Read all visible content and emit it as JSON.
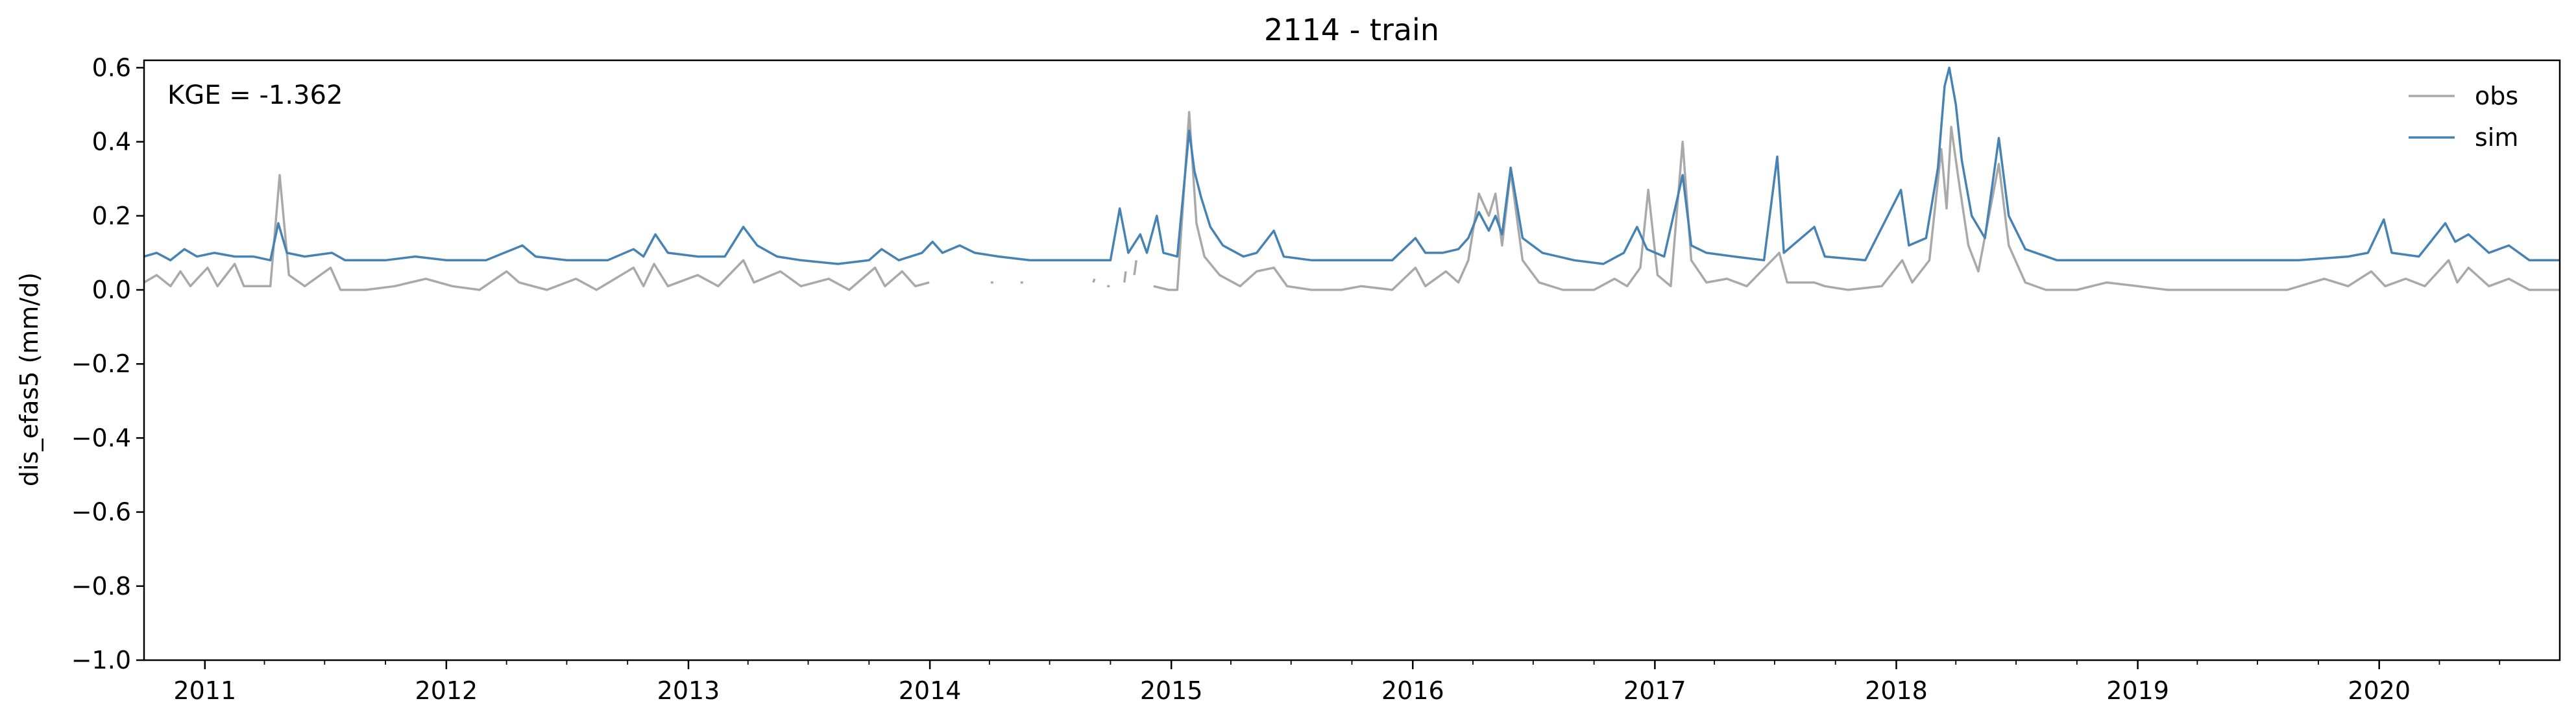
{
  "chart_data": {
    "type": "line",
    "title": "2114 - train",
    "xlabel": "",
    "ylabel": "dis_efas5 (mm/d)",
    "annotation": "KGE = -1.362",
    "xlim": [
      "2010-10-01",
      "2020-09-30"
    ],
    "ylim": [
      -1.0,
      0.62
    ],
    "yticks": [
      {
        "value": 0.6,
        "label": "0.6"
      },
      {
        "value": 0.4,
        "label": "0.4"
      },
      {
        "value": 0.2,
        "label": "0.2"
      },
      {
        "value": 0.0,
        "label": "0.0"
      },
      {
        "value": -0.2,
        "label": "−0.2"
      },
      {
        "value": -0.4,
        "label": "−0.4"
      },
      {
        "value": -0.6,
        "label": "−0.6"
      },
      {
        "value": -0.8,
        "label": "−0.8"
      },
      {
        "value": -1.0,
        "label": "−1.0"
      }
    ],
    "xticks": [
      {
        "value": "2011-01-01",
        "label": "2011"
      },
      {
        "value": "2012-01-01",
        "label": "2012"
      },
      {
        "value": "2013-01-01",
        "label": "2013"
      },
      {
        "value": "2014-01-01",
        "label": "2014"
      },
      {
        "value": "2015-01-01",
        "label": "2015"
      },
      {
        "value": "2016-01-01",
        "label": "2016"
      },
      {
        "value": "2017-01-01",
        "label": "2017"
      },
      {
        "value": "2018-01-01",
        "label": "2018"
      },
      {
        "value": "2019-01-01",
        "label": "2019"
      },
      {
        "value": "2020-01-01",
        "label": "2020"
      }
    ],
    "grid": false,
    "legend": {
      "position": "top-right",
      "frame": false
    },
    "series": [
      {
        "name": "obs",
        "color": "#a9a9a9",
        "points": [
          [
            "2010-10-01",
            0.02
          ],
          [
            "2010-10-20",
            0.04
          ],
          [
            "2010-11-10",
            0.01
          ],
          [
            "2010-11-25",
            0.05
          ],
          [
            "2010-12-10",
            0.01
          ],
          [
            "2011-01-05",
            0.06
          ],
          [
            "2011-01-20",
            0.01
          ],
          [
            "2011-02-15",
            0.07
          ],
          [
            "2011-03-01",
            0.01
          ],
          [
            "2011-04-10",
            0.01
          ],
          [
            "2011-04-24",
            0.31
          ],
          [
            "2011-05-08",
            0.04
          ],
          [
            "2011-06-01",
            0.01
          ],
          [
            "2011-07-10",
            0.06
          ],
          [
            "2011-07-25",
            0.0
          ],
          [
            "2011-09-01",
            0.0
          ],
          [
            "2011-10-15",
            0.01
          ],
          [
            "2011-12-01",
            0.03
          ],
          [
            "2012-01-10",
            0.01
          ],
          [
            "2012-02-20",
            0.0
          ],
          [
            "2012-04-01",
            0.05
          ],
          [
            "2012-04-20",
            0.02
          ],
          [
            "2012-06-01",
            0.0
          ],
          [
            "2012-07-15",
            0.03
          ],
          [
            "2012-08-15",
            0.0
          ],
          [
            "2012-10-10",
            0.06
          ],
          [
            "2012-10-25",
            0.01
          ],
          [
            "2012-11-10",
            0.07
          ],
          [
            "2012-12-01",
            0.01
          ],
          [
            "2013-01-15",
            0.04
          ],
          [
            "2013-02-15",
            0.01
          ],
          [
            "2013-03-25",
            0.08
          ],
          [
            "2013-04-10",
            0.02
          ],
          [
            "2013-05-20",
            0.05
          ],
          [
            "2013-06-20",
            0.01
          ],
          [
            "2013-08-01",
            0.03
          ],
          [
            "2013-09-01",
            0.0
          ],
          [
            "2013-10-10",
            0.06
          ],
          [
            "2013-10-25",
            0.01
          ],
          [
            "2013-11-20",
            0.05
          ],
          [
            "2013-12-10",
            0.01
          ],
          [
            "2013-12-31",
            0.02
          ],
          [
            "2014-01-01",
            null
          ],
          [
            "2014-04-05",
            0.02
          ],
          [
            "2014-04-06",
            null
          ],
          [
            "2014-05-20",
            0.02
          ],
          [
            "2014-05-21",
            null
          ],
          [
            "2014-09-05",
            0.02
          ],
          [
            "2014-09-07",
            0.03
          ],
          [
            "2014-09-08",
            null
          ],
          [
            "2014-09-28",
            0.01
          ],
          [
            "2014-09-29",
            null
          ],
          [
            "2014-10-22",
            0.02
          ],
          [
            "2014-10-24",
            0.05
          ],
          [
            "2014-10-25",
            null
          ],
          [
            "2014-11-06",
            0.04
          ],
          [
            "2014-11-09",
            0.08
          ],
          [
            "2014-11-10",
            null
          ],
          [
            "2014-12-05",
            0.01
          ],
          [
            "2014-12-28",
            0.0
          ],
          [
            "2015-01-10",
            0.0
          ],
          [
            "2015-01-28",
            0.48
          ],
          [
            "2015-02-08",
            0.18
          ],
          [
            "2015-02-20",
            0.09
          ],
          [
            "2015-03-15",
            0.04
          ],
          [
            "2015-04-15",
            0.01
          ],
          [
            "2015-05-10",
            0.05
          ],
          [
            "2015-06-05",
            0.06
          ],
          [
            "2015-06-25",
            0.01
          ],
          [
            "2015-08-01",
            0.0
          ],
          [
            "2015-09-15",
            0.0
          ],
          [
            "2015-10-15",
            0.01
          ],
          [
            "2015-12-01",
            0.0
          ],
          [
            "2016-01-05",
            0.06
          ],
          [
            "2016-01-20",
            0.01
          ],
          [
            "2016-02-20",
            0.05
          ],
          [
            "2016-03-10",
            0.02
          ],
          [
            "2016-03-25",
            0.08
          ],
          [
            "2016-04-10",
            0.26
          ],
          [
            "2016-04-25",
            0.2
          ],
          [
            "2016-05-05",
            0.26
          ],
          [
            "2016-05-15",
            0.12
          ],
          [
            "2016-05-28",
            0.32
          ],
          [
            "2016-06-15",
            0.08
          ],
          [
            "2016-07-10",
            0.02
          ],
          [
            "2016-08-15",
            0.0
          ],
          [
            "2016-10-01",
            0.0
          ],
          [
            "2016-11-01",
            0.03
          ],
          [
            "2016-11-20",
            0.01
          ],
          [
            "2016-12-10",
            0.06
          ],
          [
            "2016-12-22",
            0.27
          ],
          [
            "2017-01-05",
            0.04
          ],
          [
            "2017-01-25",
            0.01
          ],
          [
            "2017-02-12",
            0.4
          ],
          [
            "2017-02-25",
            0.08
          ],
          [
            "2017-03-20",
            0.02
          ],
          [
            "2017-04-20",
            0.03
          ],
          [
            "2017-05-20",
            0.01
          ],
          [
            "2017-07-08",
            0.1
          ],
          [
            "2017-07-20",
            0.02
          ],
          [
            "2017-08-30",
            0.02
          ],
          [
            "2017-09-15",
            0.01
          ],
          [
            "2017-10-20",
            0.0
          ],
          [
            "2017-12-10",
            0.01
          ],
          [
            "2018-01-10",
            0.08
          ],
          [
            "2018-01-25",
            0.02
          ],
          [
            "2018-02-20",
            0.08
          ],
          [
            "2018-03-10",
            0.38
          ],
          [
            "2018-03-18",
            0.22
          ],
          [
            "2018-03-25",
            0.44
          ],
          [
            "2018-04-05",
            0.3
          ],
          [
            "2018-04-20",
            0.12
          ],
          [
            "2018-05-05",
            0.05
          ],
          [
            "2018-06-05",
            0.34
          ],
          [
            "2018-06-20",
            0.12
          ],
          [
            "2018-07-15",
            0.02
          ],
          [
            "2018-08-15",
            0.0
          ],
          [
            "2018-10-01",
            0.0
          ],
          [
            "2018-11-15",
            0.02
          ],
          [
            "2019-01-01",
            0.01
          ],
          [
            "2019-02-15",
            0.0
          ],
          [
            "2019-04-15",
            0.0
          ],
          [
            "2019-06-15",
            0.0
          ],
          [
            "2019-08-15",
            0.0
          ],
          [
            "2019-10-10",
            0.03
          ],
          [
            "2019-11-15",
            0.01
          ],
          [
            "2019-12-20",
            0.05
          ],
          [
            "2020-01-10",
            0.01
          ],
          [
            "2020-02-10",
            0.03
          ],
          [
            "2020-03-10",
            0.01
          ],
          [
            "2020-04-15",
            0.08
          ],
          [
            "2020-04-28",
            0.02
          ],
          [
            "2020-05-15",
            0.06
          ],
          [
            "2020-06-15",
            0.01
          ],
          [
            "2020-07-15",
            0.03
          ],
          [
            "2020-08-15",
            0.0
          ],
          [
            "2020-09-30",
            0.0
          ]
        ]
      },
      {
        "name": "sim",
        "color": "#4682b4",
        "points": [
          [
            "2010-10-01",
            0.09
          ],
          [
            "2010-10-20",
            0.1
          ],
          [
            "2010-11-10",
            0.08
          ],
          [
            "2010-12-01",
            0.11
          ],
          [
            "2010-12-20",
            0.09
          ],
          [
            "2011-01-15",
            0.1
          ],
          [
            "2011-02-15",
            0.09
          ],
          [
            "2011-03-15",
            0.09
          ],
          [
            "2011-04-10",
            0.08
          ],
          [
            "2011-04-22",
            0.18
          ],
          [
            "2011-05-05",
            0.1
          ],
          [
            "2011-06-01",
            0.09
          ],
          [
            "2011-07-12",
            0.1
          ],
          [
            "2011-08-01",
            0.08
          ],
          [
            "2011-10-01",
            0.08
          ],
          [
            "2011-11-15",
            0.09
          ],
          [
            "2012-01-01",
            0.08
          ],
          [
            "2012-03-01",
            0.08
          ],
          [
            "2012-04-25",
            0.12
          ],
          [
            "2012-05-15",
            0.09
          ],
          [
            "2012-07-01",
            0.08
          ],
          [
            "2012-09-01",
            0.08
          ],
          [
            "2012-10-10",
            0.11
          ],
          [
            "2012-10-25",
            0.09
          ],
          [
            "2012-11-12",
            0.15
          ],
          [
            "2012-12-01",
            0.1
          ],
          [
            "2013-01-15",
            0.09
          ],
          [
            "2013-02-25",
            0.09
          ],
          [
            "2013-03-25",
            0.17
          ],
          [
            "2013-04-15",
            0.12
          ],
          [
            "2013-05-15",
            0.09
          ],
          [
            "2013-06-20",
            0.08
          ],
          [
            "2013-08-15",
            0.07
          ],
          [
            "2013-10-01",
            0.08
          ],
          [
            "2013-10-20",
            0.11
          ],
          [
            "2013-11-15",
            0.08
          ],
          [
            "2013-12-20",
            0.1
          ],
          [
            "2014-01-05",
            0.13
          ],
          [
            "2014-01-20",
            0.1
          ],
          [
            "2014-02-15",
            0.12
          ],
          [
            "2014-03-10",
            0.1
          ],
          [
            "2014-04-15",
            0.09
          ],
          [
            "2014-06-01",
            0.08
          ],
          [
            "2014-07-15",
            0.08
          ],
          [
            "2014-09-01",
            0.08
          ],
          [
            "2014-10-01",
            0.08
          ],
          [
            "2014-10-15",
            0.22
          ],
          [
            "2014-10-28",
            0.1
          ],
          [
            "2014-11-15",
            0.15
          ],
          [
            "2014-11-25",
            0.1
          ],
          [
            "2014-12-10",
            0.2
          ],
          [
            "2014-12-20",
            0.1
          ],
          [
            "2015-01-10",
            0.09
          ],
          [
            "2015-01-28",
            0.43
          ],
          [
            "2015-02-05",
            0.32
          ],
          [
            "2015-02-15",
            0.25
          ],
          [
            "2015-03-01",
            0.17
          ],
          [
            "2015-03-20",
            0.12
          ],
          [
            "2015-04-20",
            0.09
          ],
          [
            "2015-05-10",
            0.1
          ],
          [
            "2015-06-05",
            0.16
          ],
          [
            "2015-06-20",
            0.09
          ],
          [
            "2015-08-01",
            0.08
          ],
          [
            "2015-10-01",
            0.08
          ],
          [
            "2015-12-01",
            0.08
          ],
          [
            "2016-01-05",
            0.14
          ],
          [
            "2016-01-20",
            0.1
          ],
          [
            "2016-02-15",
            0.1
          ],
          [
            "2016-03-10",
            0.11
          ],
          [
            "2016-03-25",
            0.14
          ],
          [
            "2016-04-10",
            0.21
          ],
          [
            "2016-04-25",
            0.16
          ],
          [
            "2016-05-05",
            0.2
          ],
          [
            "2016-05-15",
            0.15
          ],
          [
            "2016-05-28",
            0.33
          ],
          [
            "2016-06-15",
            0.14
          ],
          [
            "2016-07-15",
            0.1
          ],
          [
            "2016-09-01",
            0.08
          ],
          [
            "2016-10-15",
            0.07
          ],
          [
            "2016-11-15",
            0.1
          ],
          [
            "2016-12-05",
            0.17
          ],
          [
            "2016-12-20",
            0.11
          ],
          [
            "2017-01-15",
            0.09
          ],
          [
            "2017-02-12",
            0.31
          ],
          [
            "2017-02-25",
            0.12
          ],
          [
            "2017-03-20",
            0.1
          ],
          [
            "2017-05-01",
            0.09
          ],
          [
            "2017-06-15",
            0.08
          ],
          [
            "2017-07-05",
            0.36
          ],
          [
            "2017-07-15",
            0.1
          ],
          [
            "2017-08-30",
            0.17
          ],
          [
            "2017-09-15",
            0.09
          ],
          [
            "2017-11-15",
            0.08
          ],
          [
            "2018-01-08",
            0.27
          ],
          [
            "2018-01-20",
            0.12
          ],
          [
            "2018-02-15",
            0.14
          ],
          [
            "2018-03-05",
            0.33
          ],
          [
            "2018-03-15",
            0.55
          ],
          [
            "2018-03-22",
            0.6
          ],
          [
            "2018-04-01",
            0.5
          ],
          [
            "2018-04-10",
            0.35
          ],
          [
            "2018-04-25",
            0.2
          ],
          [
            "2018-05-15",
            0.14
          ],
          [
            "2018-06-05",
            0.41
          ],
          [
            "2018-06-20",
            0.2
          ],
          [
            "2018-07-15",
            0.11
          ],
          [
            "2018-09-01",
            0.08
          ],
          [
            "2018-11-01",
            0.08
          ],
          [
            "2019-01-01",
            0.08
          ],
          [
            "2019-03-01",
            0.08
          ],
          [
            "2019-06-01",
            0.08
          ],
          [
            "2019-09-01",
            0.08
          ],
          [
            "2019-11-15",
            0.09
          ],
          [
            "2019-12-15",
            0.1
          ],
          [
            "2020-01-08",
            0.19
          ],
          [
            "2020-01-20",
            0.1
          ],
          [
            "2020-03-01",
            0.09
          ],
          [
            "2020-04-10",
            0.18
          ],
          [
            "2020-04-25",
            0.13
          ],
          [
            "2020-05-15",
            0.15
          ],
          [
            "2020-06-15",
            0.1
          ],
          [
            "2020-07-15",
            0.12
          ],
          [
            "2020-08-15",
            0.08
          ],
          [
            "2020-09-30",
            0.08
          ]
        ]
      }
    ]
  }
}
